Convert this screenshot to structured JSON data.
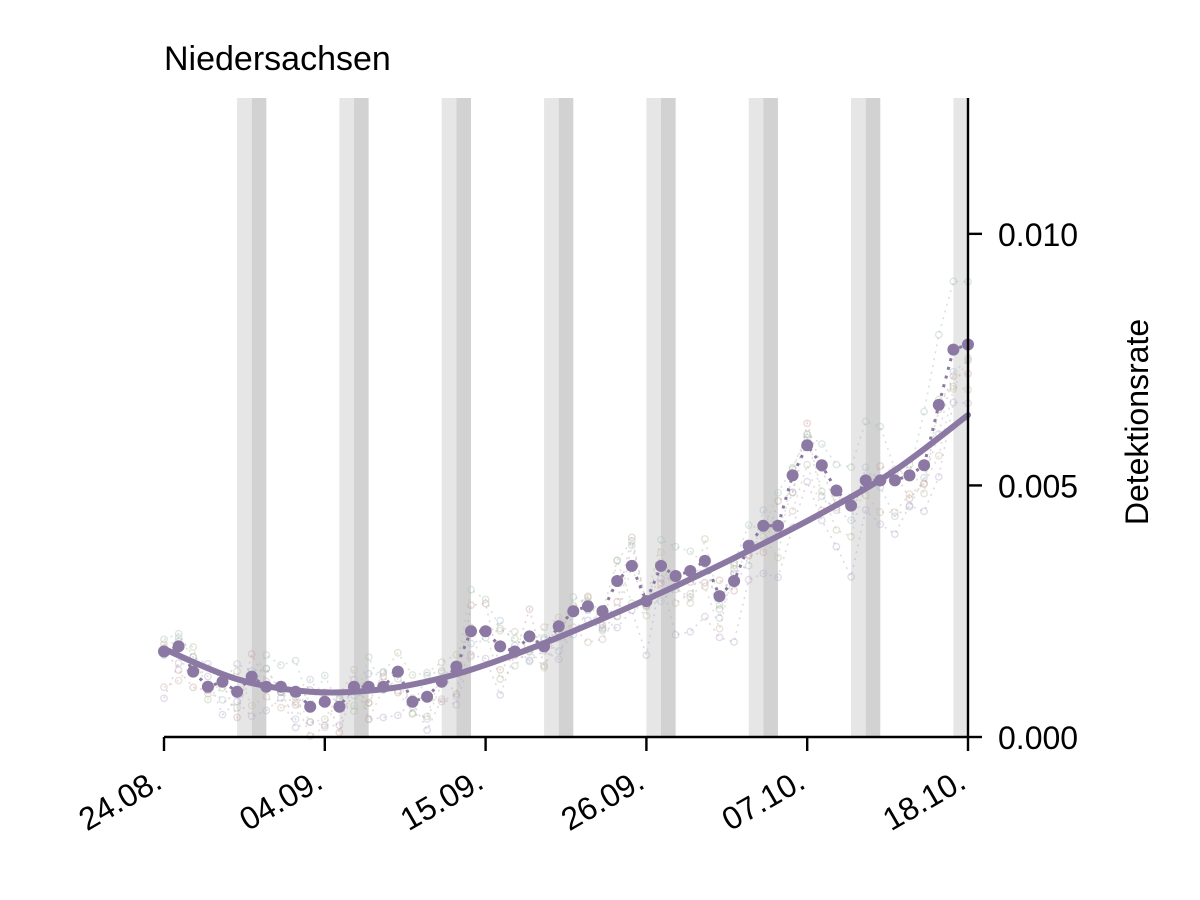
{
  "chart_data": {
    "type": "line",
    "title": "Niedersachsen",
    "xlabel": "",
    "ylabel": "Detektionsrate",
    "x_ticks": [
      "24.08.",
      "04.09.",
      "15.09.",
      "26.09.",
      "07.10.",
      "18.10."
    ],
    "y_ticks": [
      "0.000",
      "0.005",
      "0.010"
    ],
    "xlim": [
      "2020-08-24",
      "2020-10-18"
    ],
    "ylim": [
      0.0,
      0.0127
    ],
    "y_axis_position": "right",
    "grid": false,
    "legend": "none",
    "shaded_weekends": [
      [
        "2020-08-29",
        "2020-08-30"
      ],
      [
        "2020-09-05",
        "2020-09-06"
      ],
      [
        "2020-09-12",
        "2020-09-13"
      ],
      [
        "2020-09-19",
        "2020-09-20"
      ],
      [
        "2020-09-26",
        "2020-09-27"
      ],
      [
        "2020-10-03",
        "2020-10-04"
      ],
      [
        "2020-10-10",
        "2020-10-11"
      ],
      [
        "2020-10-17",
        "2020-10-18"
      ]
    ],
    "series": [
      {
        "role": "observed",
        "color": "#8b78a3",
        "style": "dotted-with-markers",
        "x": [
          "2020-08-24",
          "2020-08-25",
          "2020-08-26",
          "2020-08-27",
          "2020-08-28",
          "2020-08-29",
          "2020-08-30",
          "2020-08-31",
          "2020-09-01",
          "2020-09-02",
          "2020-09-03",
          "2020-09-04",
          "2020-09-05",
          "2020-09-06",
          "2020-09-07",
          "2020-09-08",
          "2020-09-09",
          "2020-09-10",
          "2020-09-11",
          "2020-09-12",
          "2020-09-13",
          "2020-09-14",
          "2020-09-15",
          "2020-09-16",
          "2020-09-17",
          "2020-09-18",
          "2020-09-19",
          "2020-09-20",
          "2020-09-21",
          "2020-09-22",
          "2020-09-23",
          "2020-09-24",
          "2020-09-25",
          "2020-09-26",
          "2020-09-27",
          "2020-09-28",
          "2020-09-29",
          "2020-09-30",
          "2020-10-01",
          "2020-10-02",
          "2020-10-03",
          "2020-10-04",
          "2020-10-05",
          "2020-10-06",
          "2020-10-07",
          "2020-10-08",
          "2020-10-09",
          "2020-10-10",
          "2020-10-11",
          "2020-10-12",
          "2020-10-13",
          "2020-10-14",
          "2020-10-15",
          "2020-10-16",
          "2020-10-17",
          "2020-10-18"
        ],
        "values": [
          0.0017,
          0.0018,
          0.0013,
          0.001,
          0.0011,
          0.0009,
          0.0012,
          0.001,
          0.001,
          0.0009,
          0.0006,
          0.0007,
          0.0006,
          0.001,
          0.001,
          0.001,
          0.0013,
          0.0007,
          0.0008,
          0.0011,
          0.0014,
          0.0021,
          0.0021,
          0.0018,
          0.0017,
          0.002,
          0.0018,
          0.0022,
          0.0025,
          0.0026,
          0.0025,
          0.0031,
          0.0034,
          0.0027,
          0.0034,
          0.0032,
          0.0033,
          0.0035,
          0.0028,
          0.0031,
          0.0038,
          0.0042,
          0.0042,
          0.0052,
          0.0058,
          0.0054,
          0.0049,
          0.0046,
          0.0051,
          0.0051,
          0.0051,
          0.0052,
          0.0054,
          0.0066,
          0.0077,
          0.0078
        ]
      },
      {
        "role": "trend",
        "color": "#8b78a3",
        "style": "solid",
        "x": [
          "2020-08-24",
          "2020-08-29",
          "2020-09-03",
          "2020-09-08",
          "2020-09-13",
          "2020-09-18",
          "2020-09-23",
          "2020-09-28",
          "2020-10-03",
          "2020-10-08",
          "2020-10-13",
          "2020-10-18"
        ],
        "values": [
          0.00175,
          0.00115,
          0.0009,
          0.00095,
          0.00125,
          0.00175,
          0.00235,
          0.003,
          0.0037,
          0.00445,
          0.0053,
          0.0064
        ]
      }
    ]
  }
}
